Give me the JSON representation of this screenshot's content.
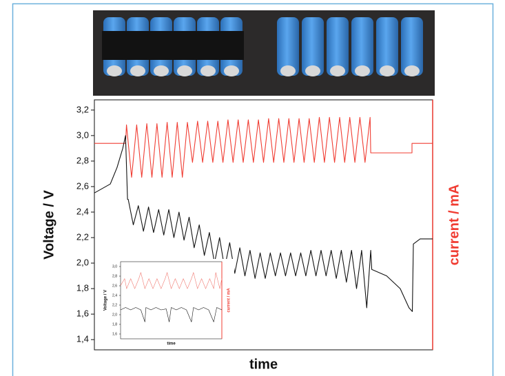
{
  "chart_data": [
    {
      "type": "line",
      "xlabel": "time",
      "ylabel": "Voltage / V",
      "y2label": "current / mA",
      "y2color": "#f03c32",
      "xlim": [
        0,
        100
      ],
      "ylim": [
        1.32,
        3.28
      ],
      "y2lim": [
        0,
        10
      ],
      "yticks": [
        {
          "value": 1.4,
          "label": "1,4"
        },
        {
          "value": 1.6,
          "label": "1,6"
        },
        {
          "value": 1.8,
          "label": "1,8"
        },
        {
          "value": 2.0,
          "label": "2,0"
        },
        {
          "value": 2.2,
          "label": "2,2"
        },
        {
          "value": 2.4,
          "label": "2,4"
        },
        {
          "value": 2.6,
          "label": "2,6"
        },
        {
          "value": 2.8,
          "label": "2,8"
        },
        {
          "value": 3.0,
          "label": "3,0"
        },
        {
          "value": 3.2,
          "label": "3,2"
        }
      ],
      "series": [
        {
          "color": "#f03c32",
          "axis": "y2",
          "x": [
            0,
            9.2,
            9.5,
            11,
            12.5,
            14,
            15.5,
            17,
            18.5,
            20,
            21.5,
            23,
            24.5,
            26,
            27.5,
            29,
            30.5,
            32,
            33.5,
            35,
            36.5,
            38,
            39.5,
            41,
            42.5,
            44,
            45.5,
            47,
            48.5,
            50,
            51.5,
            53,
            54.5,
            56,
            57.5,
            59,
            60.5,
            62,
            63.5,
            65,
            66.5,
            68,
            69.5,
            71,
            72.5,
            74,
            75.5,
            77,
            78.5,
            80,
            81.5,
            81.7,
            93.9,
            93.9,
            100
          ],
          "values": [
            8.26,
            8.26,
            9.0,
            6.9,
            9.0,
            6.9,
            9.05,
            6.9,
            9.05,
            6.9,
            9.1,
            6.9,
            9.1,
            6.9,
            9.1,
            7.5,
            9.15,
            7.5,
            9.15,
            7.5,
            9.15,
            7.5,
            9.2,
            7.5,
            9.2,
            7.5,
            9.2,
            7.5,
            9.2,
            7.5,
            9.25,
            7.5,
            9.25,
            7.5,
            9.25,
            7.5,
            9.25,
            7.5,
            9.25,
            7.5,
            9.3,
            7.5,
            9.3,
            7.5,
            9.3,
            7.5,
            9.3,
            7.5,
            9.3,
            7.5,
            9.3,
            7.88,
            7.88,
            8.26,
            8.26
          ]
        },
        {
          "color": "#111111",
          "axis": "y",
          "x": [
            0,
            4.7,
            6.7,
            8.4,
            9.2,
            9.8,
            10,
            11.5,
            13,
            14.5,
            16,
            17.5,
            19,
            20.5,
            22,
            23.5,
            25,
            26.5,
            28,
            29.5,
            31,
            32.5,
            34,
            35.5,
            37,
            38.5,
            40,
            41.5,
            43,
            44.5,
            46,
            47.5,
            49,
            50.5,
            52,
            53.5,
            55,
            56.5,
            58,
            59.5,
            61,
            62.5,
            64,
            65.5,
            67,
            68.5,
            70,
            71.5,
            73,
            74.5,
            76,
            77.5,
            79,
            80.5,
            81.7,
            82,
            86.4,
            90.4,
            93,
            94,
            94.3,
            96.3,
            100
          ],
          "values": [
            2.55,
            2.62,
            2.75,
            2.9,
            3.0,
            2.5,
            2.5,
            2.3,
            2.45,
            2.25,
            2.44,
            2.24,
            2.42,
            2.22,
            2.42,
            2.2,
            2.4,
            2.18,
            2.36,
            2.12,
            2.3,
            2.06,
            2.24,
            2.0,
            2.2,
            1.96,
            2.16,
            1.92,
            2.12,
            1.9,
            2.1,
            1.88,
            2.08,
            1.88,
            2.08,
            1.9,
            2.08,
            1.9,
            2.08,
            1.9,
            2.08,
            1.9,
            2.1,
            1.9,
            2.1,
            1.9,
            2.1,
            1.88,
            2.1,
            1.85,
            2.1,
            1.8,
            2.1,
            1.65,
            2.1,
            1.95,
            1.9,
            1.8,
            1.65,
            1.62,
            2.15,
            2.19,
            2.19
          ]
        }
      ]
    },
    {
      "type": "line",
      "xlabel": "time",
      "ylabel": "Voltage / V",
      "y2label": "current / mA",
      "y2color": "#f03c32",
      "xlim": [
        0,
        100
      ],
      "ylim": [
        1.5,
        3.1
      ],
      "y2lim": [
        0,
        10
      ],
      "yticks": [
        {
          "value": 1.6,
          "label": "1,6"
        },
        {
          "value": 1.8,
          "label": "1,8"
        },
        {
          "value": 2.0,
          "label": "2,0"
        },
        {
          "value": 2.2,
          "label": "2,2"
        },
        {
          "value": 2.4,
          "label": "2,4"
        },
        {
          "value": 2.6,
          "label": "2,6"
        },
        {
          "value": 2.8,
          "label": "2,8"
        },
        {
          "value": 3.0,
          "label": "3,0"
        }
      ],
      "series": [
        {
          "color": "#f07870",
          "axis": "y2",
          "x": [
            0,
            4,
            6,
            10,
            14,
            18,
            20,
            24,
            28,
            32,
            36,
            40,
            44,
            46,
            50,
            54,
            58,
            62,
            66,
            70,
            72,
            76,
            80,
            84,
            88,
            92,
            94,
            98,
            100
          ],
          "values": [
            6.9,
            7.8,
            6.5,
            7.8,
            6.5,
            7.8,
            8.6,
            6.5,
            7.8,
            6.5,
            7.8,
            6.5,
            7.8,
            8.6,
            6.5,
            7.8,
            6.5,
            7.8,
            6.5,
            7.8,
            8.6,
            6.5,
            7.8,
            6.5,
            7.8,
            6.5,
            8.6,
            6.5,
            7.8
          ]
        },
        {
          "color": "#111111",
          "axis": "y",
          "x": [
            0,
            5,
            10,
            15,
            20,
            24,
            25,
            30,
            35,
            40,
            45,
            48,
            50,
            55,
            60,
            65,
            70,
            72,
            77,
            82,
            87,
            92,
            95,
            100
          ],
          "values": [
            2.1,
            2.15,
            2.1,
            2.15,
            2.1,
            1.85,
            2.15,
            2.1,
            2.15,
            2.1,
            2.12,
            1.85,
            2.15,
            2.1,
            2.15,
            2.1,
            1.85,
            2.15,
            2.1,
            2.15,
            2.1,
            1.85,
            2.15,
            2.1
          ]
        }
      ]
    }
  ]
}
